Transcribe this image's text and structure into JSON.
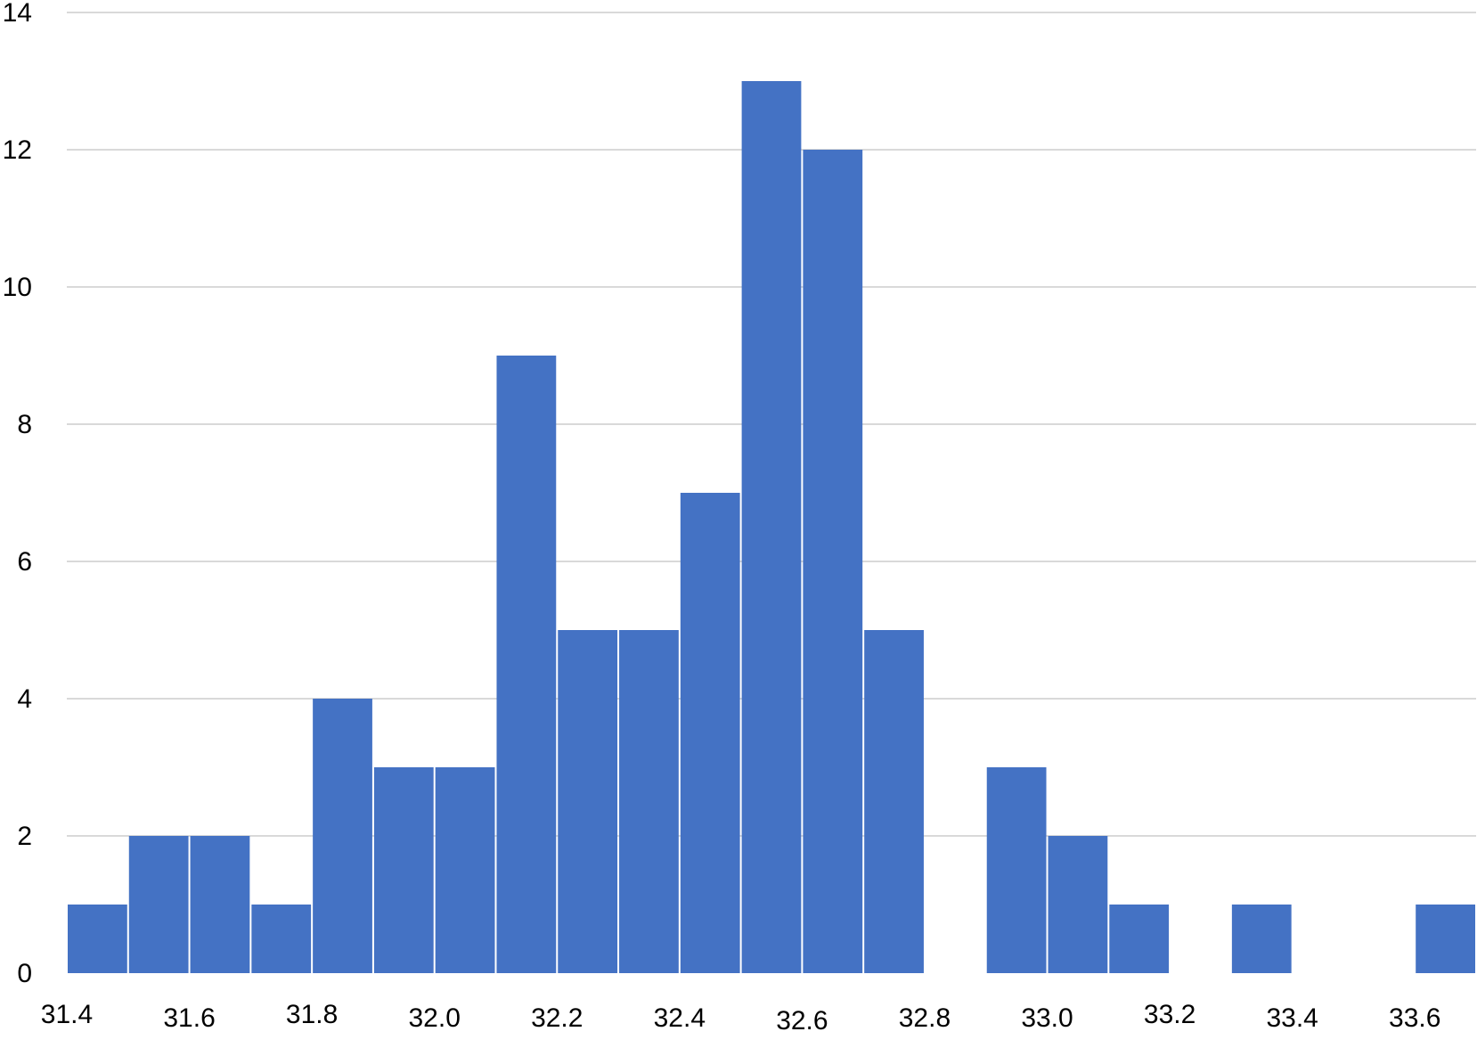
{
  "chart_data": {
    "type": "bar",
    "title": "",
    "xlabel": "",
    "ylabel": "",
    "ylim": [
      0,
      14
    ],
    "yticks": [
      0,
      2,
      4,
      6,
      8,
      10,
      12,
      14
    ],
    "grid": true,
    "xlim": [
      31.4,
      33.7
    ],
    "xticks": [
      "31.4",
      "31.6",
      "31.8",
      "32.0",
      "32.2",
      "32.4",
      "32.6",
      "32.8",
      "33.0",
      "33.2",
      "33.4",
      "33.6"
    ],
    "bins": [
      {
        "start": 31.4,
        "end": 31.5,
        "count": 1
      },
      {
        "start": 31.5,
        "end": 31.6,
        "count": 2
      },
      {
        "start": 31.6,
        "end": 31.7,
        "count": 2
      },
      {
        "start": 31.7,
        "end": 31.8,
        "count": 1
      },
      {
        "start": 31.8,
        "end": 31.9,
        "count": 4
      },
      {
        "start": 31.9,
        "end": 32.0,
        "count": 3
      },
      {
        "start": 32.0,
        "end": 32.1,
        "count": 3
      },
      {
        "start": 32.1,
        "end": 32.2,
        "count": 9
      },
      {
        "start": 32.2,
        "end": 32.3,
        "count": 5
      },
      {
        "start": 32.3,
        "end": 32.4,
        "count": 5
      },
      {
        "start": 32.4,
        "end": 32.5,
        "count": 7
      },
      {
        "start": 32.5,
        "end": 32.6,
        "count": 13
      },
      {
        "start": 32.6,
        "end": 32.7,
        "count": 12
      },
      {
        "start": 32.7,
        "end": 32.8,
        "count": 5
      },
      {
        "start": 32.8,
        "end": 32.9,
        "count": 0
      },
      {
        "start": 32.9,
        "end": 33.0,
        "count": 3
      },
      {
        "start": 33.0,
        "end": 33.1,
        "count": 2
      },
      {
        "start": 33.1,
        "end": 33.2,
        "count": 1
      },
      {
        "start": 33.2,
        "end": 33.3,
        "count": 0
      },
      {
        "start": 33.3,
        "end": 33.4,
        "count": 1
      },
      {
        "start": 33.4,
        "end": 33.5,
        "count": 0
      },
      {
        "start": 33.5,
        "end": 33.6,
        "count": 0
      },
      {
        "start": 33.6,
        "end": 33.7,
        "count": 1
      }
    ],
    "bar_color": "#4472c4"
  }
}
